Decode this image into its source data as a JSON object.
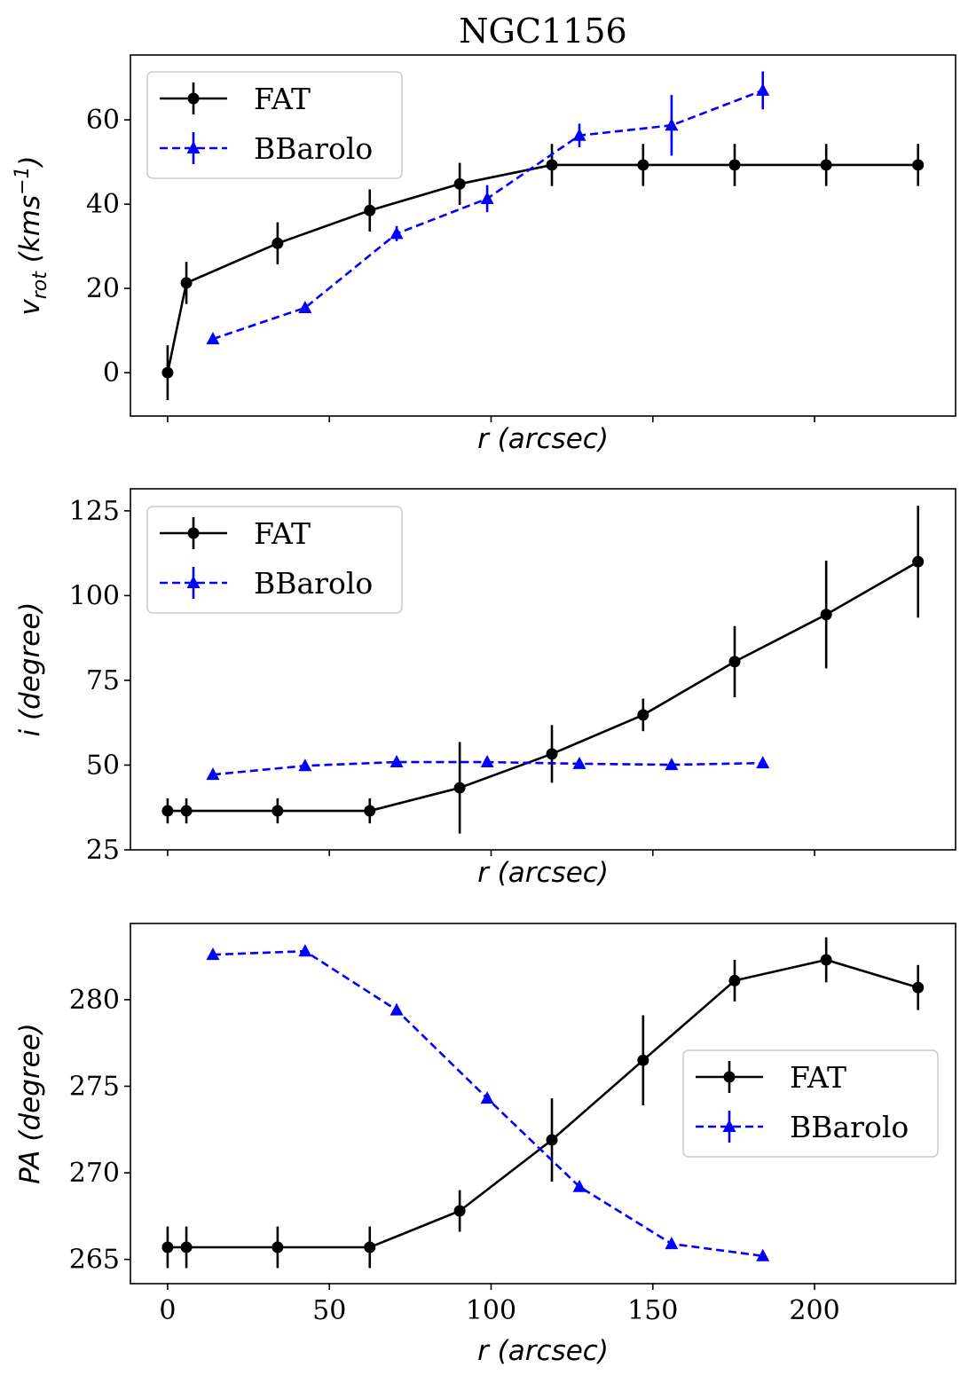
{
  "chart_data": {
    "title": "NGC1156",
    "panels": [
      {
        "type": "line",
        "xlabel": "r (arcsec)",
        "ylabel_parts": {
          "main": "v",
          "sub": "rot",
          "rest": " (kms",
          "sup": "−1",
          "end": ")"
        },
        "xlim": [
          -11.5,
          243.6
        ],
        "ylim": [
          -10.3,
          75.4
        ],
        "yticks": [
          0,
          20,
          40,
          60
        ],
        "xticks": [
          0,
          50,
          100,
          150,
          200
        ],
        "show_xtick_labels": false,
        "legend_placement": "top-left",
        "series": [
          {
            "name": "FAT",
            "color": "#000000",
            "style": "solid",
            "marker": "circle",
            "x": [
              0,
              5.8,
              34,
              62.5,
              90.3,
              118.8,
              147,
              175.3,
              203.6,
              232
            ],
            "y": [
              0,
              21.3,
              30.7,
              38.5,
              44.8,
              49.3,
              49.3,
              49.3,
              49.3,
              49.3
            ],
            "err": [
              6.5,
              5,
              5,
              5,
              5,
              5,
              5,
              5,
              5,
              5
            ]
          },
          {
            "name": "BBarolo",
            "color": "#0000ff",
            "style": "dashed",
            "marker": "triangle",
            "x": [
              14,
              42.5,
              70.8,
              98.8,
              127.3,
              155.8,
              184
            ],
            "y": [
              8,
              15.4,
              33,
              41.3,
              56.3,
              58.7,
              67
            ],
            "err": [
              0.8,
              1.2,
              1.8,
              3.2,
              2.8,
              7.2,
              4.5
            ]
          }
        ]
      },
      {
        "type": "line",
        "xlabel": "r (arcsec)",
        "ylabel": "i (degree)",
        "xlim": [
          -11.5,
          243.6
        ],
        "ylim": [
          25,
          131.5
        ],
        "yticks": [
          25,
          50,
          75,
          100,
          125
        ],
        "xticks": [
          0,
          50,
          100,
          150,
          200
        ],
        "show_xtick_labels": false,
        "legend_placement": "top-left",
        "series": [
          {
            "name": "FAT",
            "color": "#000000",
            "style": "solid",
            "marker": "circle",
            "x": [
              0,
              5.8,
              34,
              62.5,
              90.3,
              118.8,
              147,
              175.3,
              203.6,
              232
            ],
            "y": [
              36.5,
              36.5,
              36.5,
              36.5,
              43.3,
              53.3,
              64.8,
              80.5,
              94.4,
              110
            ],
            "err": [
              3.7,
              3.7,
              3.7,
              3.7,
              13.5,
              8.5,
              4.8,
              10.5,
              15.9,
              16.5
            ]
          },
          {
            "name": "BBarolo",
            "color": "#0000ff",
            "style": "dashed",
            "marker": "triangle",
            "x": [
              14,
              42.5,
              70.8,
              98.8,
              127.3,
              155.8,
              184
            ],
            "y": [
              47.2,
              49.8,
              50.9,
              50.9,
              50.4,
              50.1,
              50.6
            ],
            "err": null
          }
        ]
      },
      {
        "type": "line",
        "xlabel": "r (arcsec)",
        "ylabel": "PA (degree)",
        "xlim": [
          -11.5,
          243.6
        ],
        "ylim": [
          263.6,
          284.4
        ],
        "yticks": [
          265,
          270,
          275,
          280
        ],
        "xticks": [
          0,
          50,
          100,
          150,
          200
        ],
        "show_xtick_labels": true,
        "legend_placement": "center-right",
        "series": [
          {
            "name": "FAT",
            "color": "#000000",
            "style": "solid",
            "marker": "circle",
            "x": [
              0,
              5.8,
              34,
              62.5,
              90.3,
              118.8,
              147,
              175.3,
              203.6,
              232
            ],
            "y": [
              265.7,
              265.7,
              265.7,
              265.7,
              267.8,
              271.9,
              276.5,
              281.1,
              282.3,
              280.7
            ],
            "err": [
              1.2,
              1.2,
              1.2,
              1.2,
              1.2,
              2.4,
              2.6,
              1.2,
              1.3,
              1.3
            ]
          },
          {
            "name": "BBarolo",
            "color": "#0000ff",
            "style": "dashed",
            "marker": "triangle",
            "x": [
              14,
              42.5,
              70.8,
              98.8,
              127.3,
              155.8,
              184
            ],
            "y": [
              282.6,
              282.8,
              279.4,
              274.3,
              269.2,
              265.9,
              265.2
            ],
            "err": null
          }
        ]
      }
    ]
  }
}
